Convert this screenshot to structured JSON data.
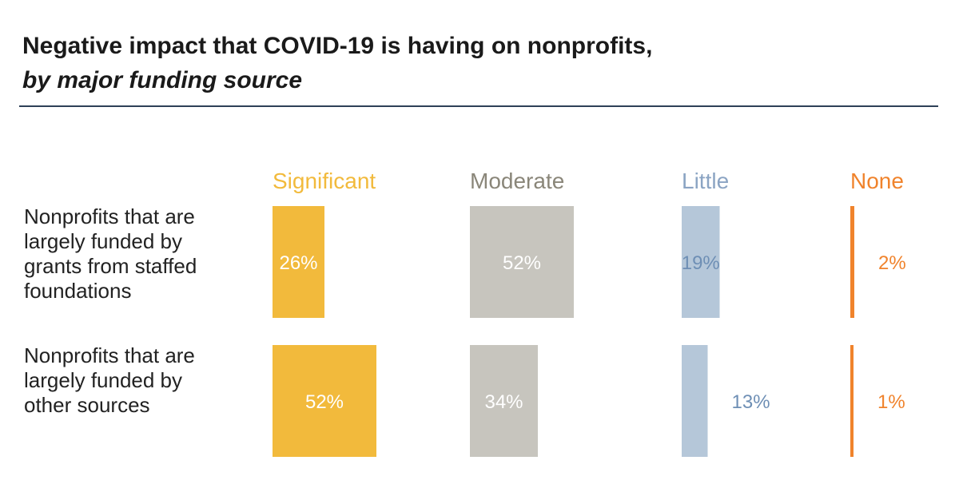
{
  "chart_data": {
    "type": "bar",
    "title": "Negative impact that COVID-19 is having on nonprofits,",
    "subtitle": "by major funding source",
    "categories": [
      "Significant",
      "Moderate",
      "Little",
      "None"
    ],
    "category_colors": [
      "#F2BA3C",
      "#8A8679",
      "#8BA4C3",
      "#F0832C"
    ],
    "bar_colors": [
      "#F2BA3C",
      "#C7C5BE",
      "#B5C7D9",
      "#F0832C"
    ],
    "value_label_colors": [
      "#FFFFFF",
      "#FFFFFF",
      "#6E8FB5",
      "#F0832C"
    ],
    "series": [
      {
        "name": "Nonprofits that are largely funded by grants from staffed foundations",
        "label_lines": [
          "Nonprofits that are",
          "largely funded by",
          "grants from staffed",
          "foundations"
        ],
        "values": [
          26,
          52,
          19,
          2
        ],
        "value_labels": [
          "26%",
          "52%",
          "19%",
          "2%"
        ]
      },
      {
        "name": "Nonprofits that are largely funded by other sources",
        "label_lines": [
          "Nonprofits that are",
          "largely funded by",
          "other sources"
        ],
        "values": [
          52,
          34,
          13,
          1
        ],
        "value_labels": [
          "52%",
          "34%",
          "13%",
          "1%"
        ]
      }
    ],
    "value_unit": "%"
  }
}
